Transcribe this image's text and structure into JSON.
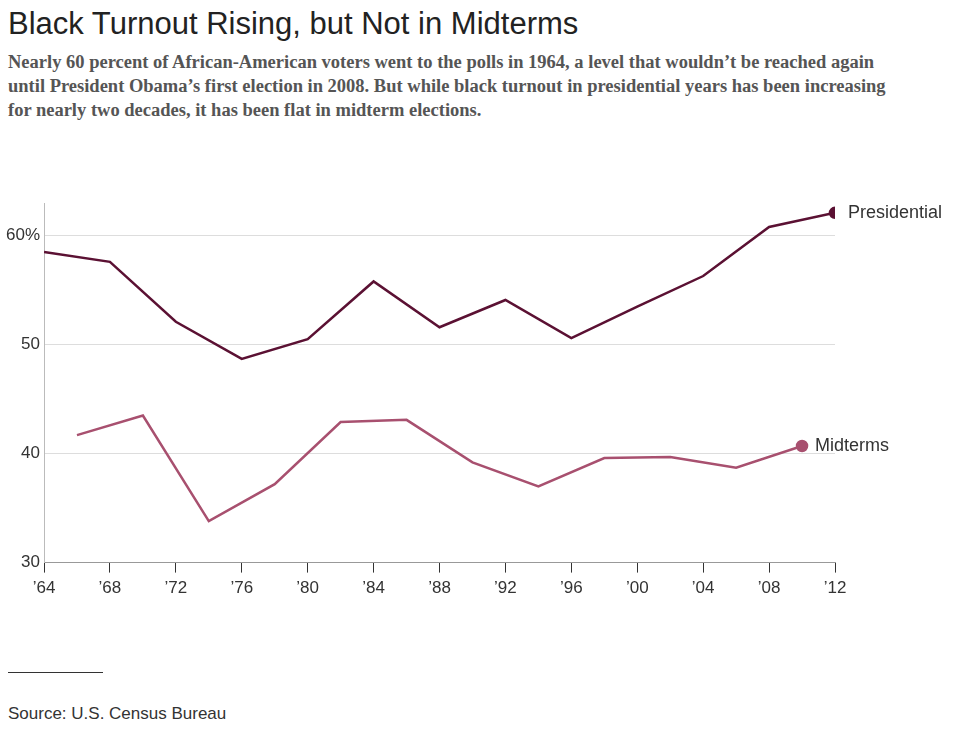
{
  "chart_data": {
    "type": "line",
    "title": "Black Turnout Rising, but Not in Midterms",
    "subtitle": "Nearly 60 percent of African-American voters went to the polls in 1964, a level that wouldn’t be reached again until President Obama’s first election in 2008. But while black turnout in presidential years has been increasing for nearly two decades, it has been flat in midterm elections.",
    "source": "Source: U.S. Census Bureau",
    "series": [
      {
        "name": "Presidential",
        "color": "#5b1133",
        "marker": "end",
        "x": [
          1964,
          1968,
          1972,
          1976,
          1980,
          1984,
          1988,
          1992,
          1996,
          2000,
          2004,
          2008,
          2012
        ],
        "values": [
          58.5,
          57.6,
          52.1,
          48.7,
          50.5,
          55.8,
          51.6,
          54.1,
          50.6,
          53.5,
          56.3,
          60.8,
          62.1
        ]
      },
      {
        "name": "Midterms",
        "color": "#a8506f",
        "marker": "end",
        "x": [
          1966,
          1970,
          1974,
          1978,
          1982,
          1986,
          1990,
          1994,
          1998,
          2002,
          2006,
          2010
        ],
        "values": [
          41.7,
          43.5,
          33.8,
          37.2,
          42.9,
          43.1,
          39.2,
          37.0,
          39.6,
          39.7,
          38.7,
          40.7
        ]
      }
    ],
    "xlim": [
      1964,
      2012
    ],
    "xticks": [
      {
        "value": 1964,
        "label": "’64"
      },
      {
        "value": 1968,
        "label": "’68"
      },
      {
        "value": 1972,
        "label": "’72"
      },
      {
        "value": 1976,
        "label": "’76"
      },
      {
        "value": 1980,
        "label": "’80"
      },
      {
        "value": 1984,
        "label": "’84"
      },
      {
        "value": 1988,
        "label": "’88"
      },
      {
        "value": 1992,
        "label": "’92"
      },
      {
        "value": 1996,
        "label": "’96"
      },
      {
        "value": 2000,
        "label": "’00"
      },
      {
        "value": 2004,
        "label": "’04"
      },
      {
        "value": 2008,
        "label": "’08"
      },
      {
        "value": 2012,
        "label": "’12"
      }
    ],
    "ylim": [
      30,
      63
    ],
    "yticks": [
      30,
      40,
      50,
      {
        "value": 60,
        "label": "60%"
      }
    ],
    "grid": true
  }
}
